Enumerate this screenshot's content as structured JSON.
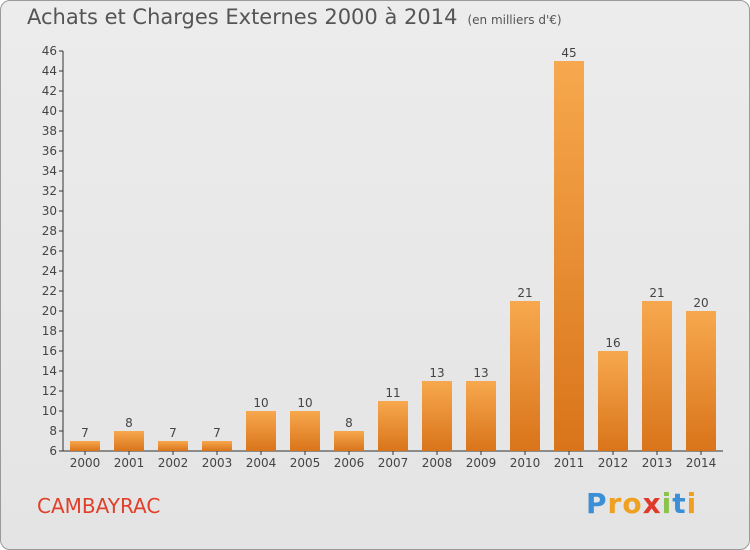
{
  "title": "Achats et Charges Externes 2000 à 2014",
  "subtitle": "(en milliers d'€)",
  "commune": "CAMBAYRAC",
  "logo": {
    "letters": [
      "P",
      "r",
      "o",
      "x",
      "i",
      "t",
      "i"
    ],
    "colors": [
      "#3a8fd6",
      "#f0a020",
      "#f0a020",
      "#e03a2a",
      "#8bc34a",
      "#3a8fd6",
      "#f0a020"
    ]
  },
  "chart_data": {
    "type": "bar",
    "categories": [
      "2000",
      "2001",
      "2002",
      "2003",
      "2004",
      "2005",
      "2006",
      "2007",
      "2008",
      "2009",
      "2010",
      "2011",
      "2012",
      "2013",
      "2014"
    ],
    "values": [
      7,
      8,
      7,
      7,
      10,
      10,
      8,
      11,
      13,
      13,
      21,
      45,
      16,
      21,
      20
    ],
    "ylim": [
      6,
      46
    ],
    "yticks": [
      6,
      8,
      10,
      12,
      14,
      16,
      18,
      20,
      22,
      24,
      26,
      28,
      30,
      32,
      34,
      36,
      38,
      40,
      42,
      44,
      46
    ],
    "grid": false,
    "bar_color": "#f0902a"
  }
}
